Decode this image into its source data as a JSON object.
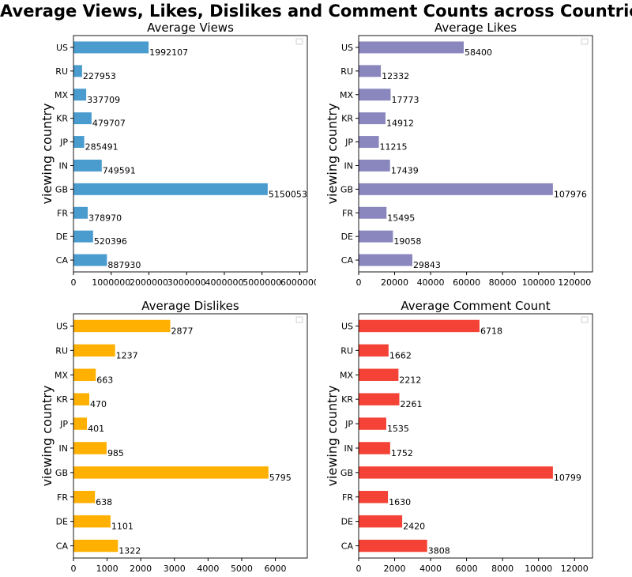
{
  "figure": {
    "title": "Average Views, Likes, Dislikes and Comment Counts across Countries"
  },
  "chart_data": [
    {
      "type": "bar",
      "orientation": "horizontal",
      "title": "Average Views",
      "ylabel": "viewing country",
      "xlabel": "",
      "categories": [
        "CA",
        "DE",
        "FR",
        "GB",
        "IN",
        "JP",
        "KR",
        "MX",
        "RU",
        "US"
      ],
      "values": [
        887930,
        520396,
        378970,
        5150053,
        749591,
        285491,
        479707,
        337709,
        227953,
        1992107
      ],
      "value_labels": [
        "887930",
        "520396",
        "378970",
        "5150053",
        "749591",
        "285491",
        "479707",
        "337709",
        "227953",
        "1992107"
      ],
      "xlim": [
        0,
        6200000
      ],
      "xticks": [
        0,
        1000000,
        2000000,
        3000000,
        4000000,
        5000000,
        6000000
      ],
      "xtick_labels": [
        "0",
        "1000000",
        "2000000",
        "3000000",
        "4000000",
        "5000000",
        "6000000"
      ],
      "color": "#4a9ccf",
      "grid": false,
      "legend": "top-right (empty)"
    },
    {
      "type": "bar",
      "orientation": "horizontal",
      "title": "Average Likes",
      "ylabel": "viewing country",
      "xlabel": "",
      "categories": [
        "CA",
        "DE",
        "FR",
        "GB",
        "IN",
        "JP",
        "KR",
        "MX",
        "RU",
        "US"
      ],
      "values": [
        29843,
        19058,
        15495,
        107976,
        17439,
        11215,
        14912,
        17773,
        12332,
        58400
      ],
      "value_labels": [
        "29843",
        "19058",
        "15495",
        "107976",
        "17439",
        "11215",
        "14912",
        "17773",
        "12332",
        "58400"
      ],
      "xlim": [
        0,
        130000
      ],
      "xticks": [
        0,
        20000,
        40000,
        60000,
        80000,
        100000,
        120000
      ],
      "xtick_labels": [
        "0",
        "20000",
        "40000",
        "60000",
        "80000",
        "100000",
        "120000"
      ],
      "color": "#8a87be",
      "grid": false,
      "legend": "top-right (empty)"
    },
    {
      "type": "bar",
      "orientation": "horizontal",
      "title": "Average Dislikes",
      "ylabel": "viewing country",
      "xlabel": "",
      "categories": [
        "CA",
        "DE",
        "FR",
        "GB",
        "IN",
        "JP",
        "KR",
        "MX",
        "RU",
        "US"
      ],
      "values": [
        1322,
        1101,
        638,
        5795,
        985,
        401,
        470,
        663,
        1237,
        2877
      ],
      "value_labels": [
        "1322",
        "1101",
        "638",
        "5795",
        "985",
        "401",
        "470",
        "663",
        "1237",
        "2877"
      ],
      "xlim": [
        0,
        6950
      ],
      "xticks": [
        0,
        1000,
        2000,
        3000,
        4000,
        5000,
        6000
      ],
      "xtick_labels": [
        "0",
        "1000",
        "2000",
        "3000",
        "4000",
        "5000",
        "6000"
      ],
      "color": "#ffb000",
      "grid": false,
      "legend": "top-right (empty)"
    },
    {
      "type": "bar",
      "orientation": "horizontal",
      "title": "Average Comment Count",
      "ylabel": "viewing country",
      "xlabel": "",
      "categories": [
        "CA",
        "DE",
        "FR",
        "GB",
        "IN",
        "JP",
        "KR",
        "MX",
        "RU",
        "US"
      ],
      "values": [
        3808,
        2420,
        1630,
        10799,
        1752,
        1535,
        2261,
        2212,
        1662,
        6718
      ],
      "value_labels": [
        "3808",
        "2420",
        "1630",
        "10799",
        "1752",
        "1535",
        "2261",
        "2212",
        "1662",
        "6718"
      ],
      "xlim": [
        0,
        13000
      ],
      "xticks": [
        0,
        2000,
        4000,
        6000,
        8000,
        10000,
        12000
      ],
      "xtick_labels": [
        "0",
        "2000",
        "4000",
        "6000",
        "8000",
        "10000",
        "12000"
      ],
      "color": "#f44336",
      "grid": false,
      "legend": "top-right (empty)"
    }
  ]
}
